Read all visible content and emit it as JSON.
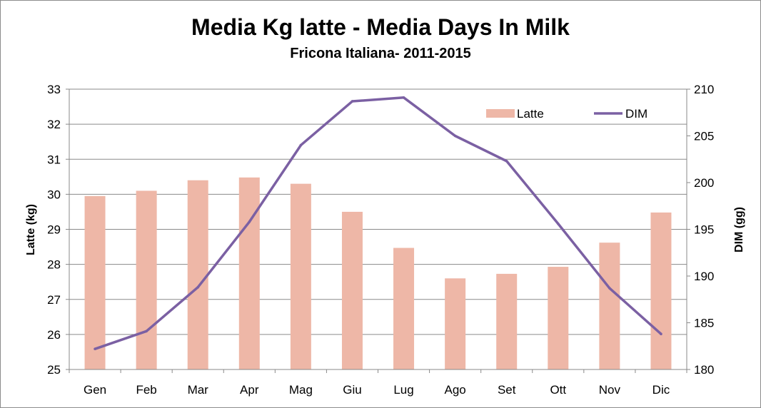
{
  "chart_data": {
    "type": "bar",
    "title": "Media Kg latte - Media Days In Milk",
    "subtitle": "Fricona  Italiana- 2011-2015",
    "categories": [
      "Gen",
      "Feb",
      "Mar",
      "Apr",
      "Mag",
      "Giu",
      "Lug",
      "Ago",
      "Set",
      "Ott",
      "Nov",
      "Dic"
    ],
    "series": [
      {
        "name": "Latte",
        "type": "bar",
        "axis": "left",
        "color": "#eeb7a7",
        "values": [
          29.95,
          30.1,
          30.4,
          30.48,
          30.3,
          29.5,
          28.47,
          27.6,
          27.73,
          27.93,
          28.62,
          29.48
        ]
      },
      {
        "name": "DIM",
        "type": "line",
        "axis": "right",
        "color": "#7b60a3",
        "values": [
          182.2,
          184.1,
          188.8,
          195.8,
          204.0,
          208.7,
          209.1,
          205.0,
          202.3,
          195.6,
          188.7,
          183.8
        ]
      }
    ],
    "ylabel": "Latte (kg)",
    "y2label": "DIM (gg)",
    "ylim": [
      25,
      33
    ],
    "y2lim": [
      180,
      210
    ],
    "yticks": [
      "25",
      "26",
      "27",
      "28",
      "29",
      "30",
      "31",
      "32",
      "33"
    ],
    "y2ticks": [
      "180",
      "185",
      "190",
      "195",
      "200",
      "205",
      "210"
    ],
    "grid": true,
    "legend": "top-right"
  }
}
